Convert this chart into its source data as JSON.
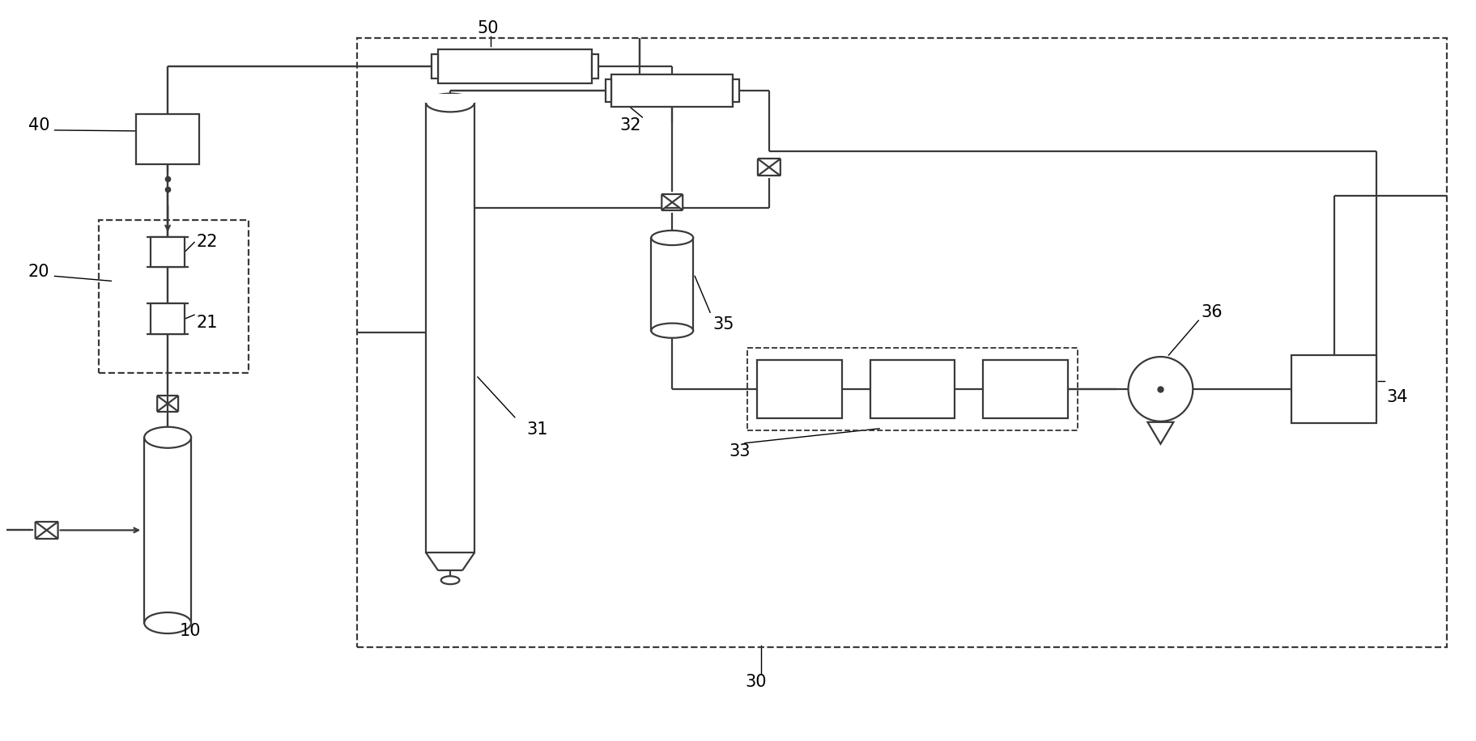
{
  "bg_color": "#ffffff",
  "line_color": "#3a3a3a",
  "lw": 1.6,
  "fig_width": 18.24,
  "fig_height": 9.16
}
